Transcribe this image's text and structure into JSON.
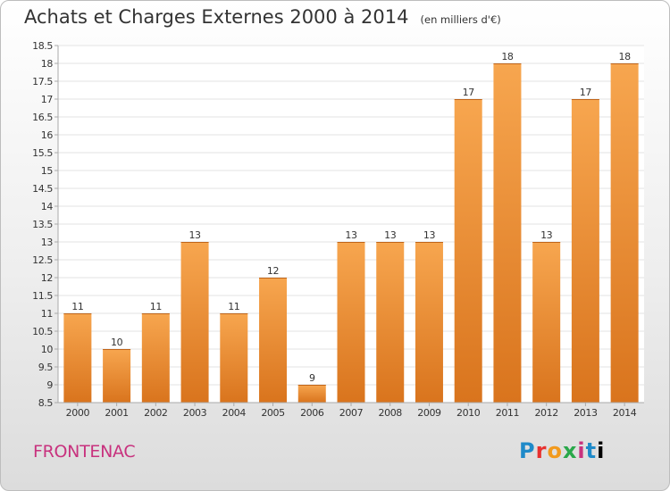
{
  "header": {
    "title": "Achats et Charges Externes 2000 à 2014",
    "unit": "(en milliers d'€)"
  },
  "footer": {
    "commune": "FRONTENAC",
    "brand": "Proxiti"
  },
  "colors": {
    "bar_light": "#f7a64f",
    "bar_dark": "#d9741d",
    "grid": "#e3e3e3",
    "axis": "#aaaaaa",
    "commune_text": "#c8327e"
  },
  "chart_data": {
    "type": "bar",
    "title": "Achats et Charges Externes 2000 à 2014",
    "subtitle": "(en milliers d'€)",
    "xlabel": "",
    "ylabel": "",
    "categories": [
      "2000",
      "2001",
      "2002",
      "2003",
      "2004",
      "2005",
      "2006",
      "2007",
      "2008",
      "2009",
      "2010",
      "2011",
      "2012",
      "2013",
      "2014"
    ],
    "values": [
      11,
      10,
      11,
      13,
      11,
      12,
      9,
      13,
      13,
      13,
      17,
      18,
      13,
      17,
      18
    ],
    "value_labels": [
      "11",
      "10",
      "11",
      "13",
      "11",
      "12",
      "9",
      "13",
      "13",
      "13",
      "17",
      "18",
      "13",
      "17",
      "18"
    ],
    "ylim": [
      8.5,
      18.5
    ],
    "yticks": [
      8.5,
      9,
      9.5,
      10,
      10.5,
      11,
      11.5,
      12,
      12.5,
      13,
      13.5,
      14,
      14.5,
      15,
      15.5,
      16,
      16.5,
      17,
      17.5,
      18,
      18.5
    ],
    "ytick_labels": [
      "8.5",
      "9",
      "9.5",
      "10",
      "10.5",
      "11",
      "11.5",
      "12",
      "12.5",
      "13",
      "13.5",
      "14",
      "14.5",
      "15",
      "15.5",
      "16",
      "16.5",
      "17",
      "17.5",
      "18",
      "18.5"
    ],
    "grid": true,
    "legend": "none"
  }
}
